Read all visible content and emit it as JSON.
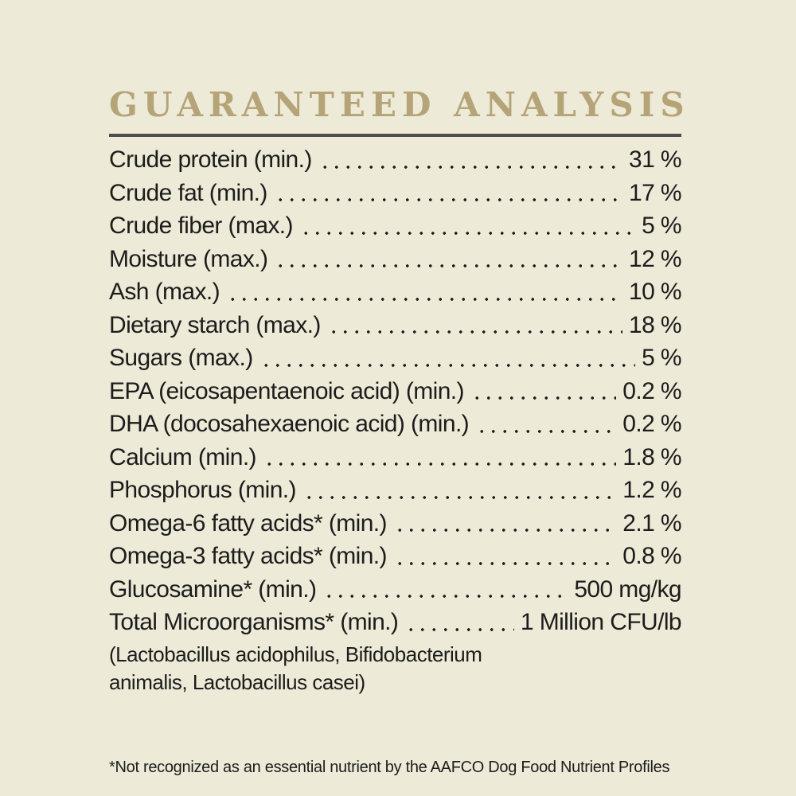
{
  "title": "GUARANTEED ANALYSIS",
  "colors": {
    "background": "#EDEAD7",
    "title": "#B5A478",
    "rule": "#4D4D4D",
    "text": "#1C1C1C"
  },
  "analysis": {
    "rows": [
      {
        "label": "Crude protein (min.)",
        "value": "31 %"
      },
      {
        "label": "Crude fat (min.)",
        "value": "17 %"
      },
      {
        "label": "Crude fiber (max.)",
        "value": "5 %"
      },
      {
        "label": "Moisture (max.)",
        "value": "12 %"
      },
      {
        "label": "Ash (max.)",
        "value": "10 %"
      },
      {
        "label": "Dietary starch (max.)",
        "value": "18 %"
      },
      {
        "label": "Sugars (max.)",
        "value": "5 %"
      },
      {
        "label": "EPA (eicosapentaenoic acid) (min.)",
        "value": "0.2 %"
      },
      {
        "label": "DHA (docosahexaenoic acid) (min.)",
        "value": "0.2 %"
      },
      {
        "label": "Calcium (min.)",
        "value": "1.8 %"
      },
      {
        "label": "Phosphorus (min.)",
        "value": "1.2 %"
      },
      {
        "label": "Omega-6 fatty acids* (min.)",
        "value": "2.1 %"
      },
      {
        "label": "Omega-3 fatty acids* (min.)",
        "value": "0.8 %"
      },
      {
        "label": "Glucosamine* (min.)",
        "value": "500 mg/kg"
      },
      {
        "label": "Total Microorganisms* (min.)",
        "value": "1 Million CFU/lb"
      }
    ],
    "note_lines": [
      "(Lactobacillus acidophilus, Bifidobacterium",
      "animalis, Lactobacillus casei)"
    ]
  },
  "footnote": "*Not recognized as an essential nutrient by the AAFCO Dog Food Nutrient Profiles"
}
